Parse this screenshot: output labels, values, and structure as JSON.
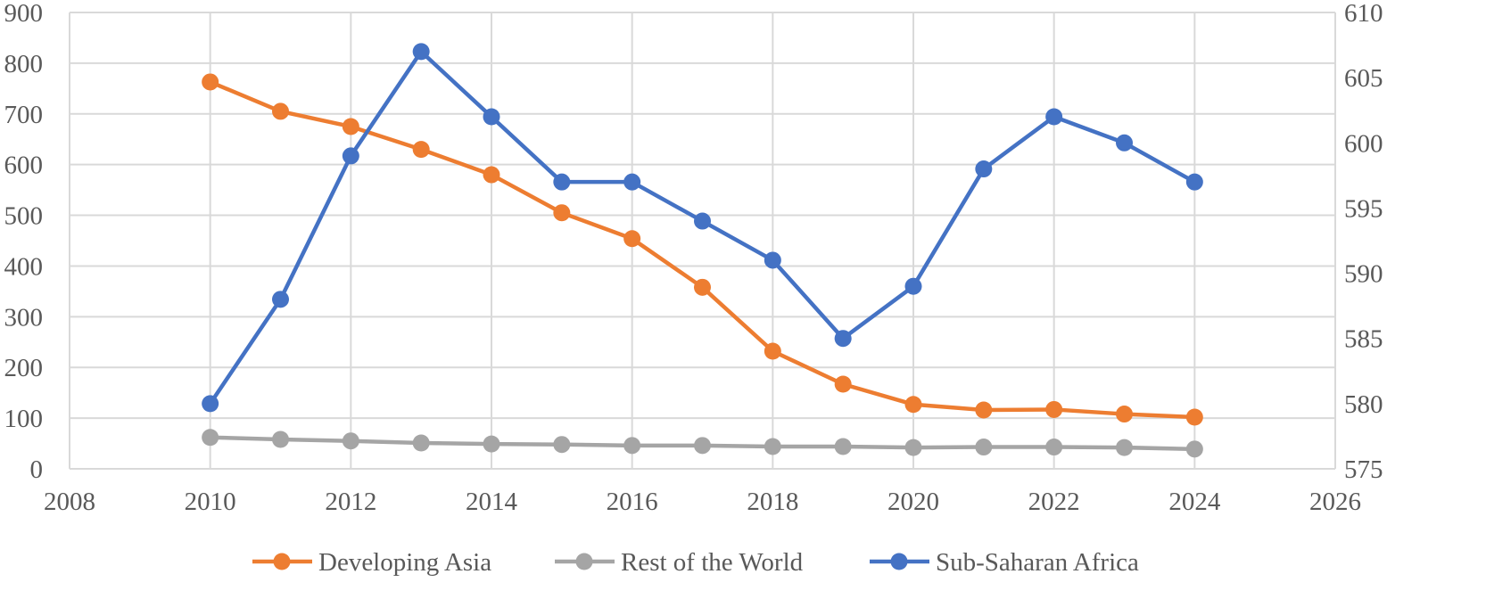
{
  "chart_data": {
    "type": "line",
    "title": "",
    "xlabel": "",
    "ylabel_left": "",
    "ylabel_right": "",
    "x_axis": {
      "min": 2008,
      "max": 2026,
      "step": 2,
      "tick_labels": [
        "2008",
        "2010",
        "2012",
        "2014",
        "2016",
        "2018",
        "2020",
        "2022",
        "2024",
        "2026"
      ]
    },
    "y_axis_left": {
      "min": 0,
      "max": 900,
      "step": 100,
      "tick_labels": [
        "0",
        "100",
        "200",
        "300",
        "400",
        "500",
        "600",
        "700",
        "800",
        "900"
      ]
    },
    "y_axis_right": {
      "min": 575,
      "max": 610,
      "step": 5,
      "tick_labels": [
        "575",
        "580",
        "585",
        "590",
        "595",
        "600",
        "605",
        "610"
      ]
    },
    "grid": true,
    "legend_position": "bottom",
    "x": [
      2010,
      2011,
      2012,
      2013,
      2014,
      2015,
      2016,
      2017,
      2018,
      2019,
      2020,
      2021,
      2022,
      2023,
      2024
    ],
    "series": [
      {
        "name": "Developing Asia",
        "axis": "left",
        "color": "#ED7D31",
        "values": [
          763,
          705,
          675,
          630,
          580,
          505,
          454,
          358,
          232,
          167,
          127,
          116,
          117,
          108,
          102
        ]
      },
      {
        "name": "Rest of the World",
        "axis": "left",
        "color": "#A5A5A5",
        "values": [
          62,
          58,
          55,
          51,
          49,
          48,
          46,
          46,
          44,
          44,
          42,
          43,
          43,
          42,
          39
        ]
      },
      {
        "name": "Sub-Saharan Africa",
        "axis": "right",
        "color": "#4472C4",
        "values": [
          580,
          588,
          599,
          607,
          602,
          597,
          597,
          594,
          591,
          585,
          589,
          598,
          602,
          600,
          597
        ]
      }
    ]
  }
}
